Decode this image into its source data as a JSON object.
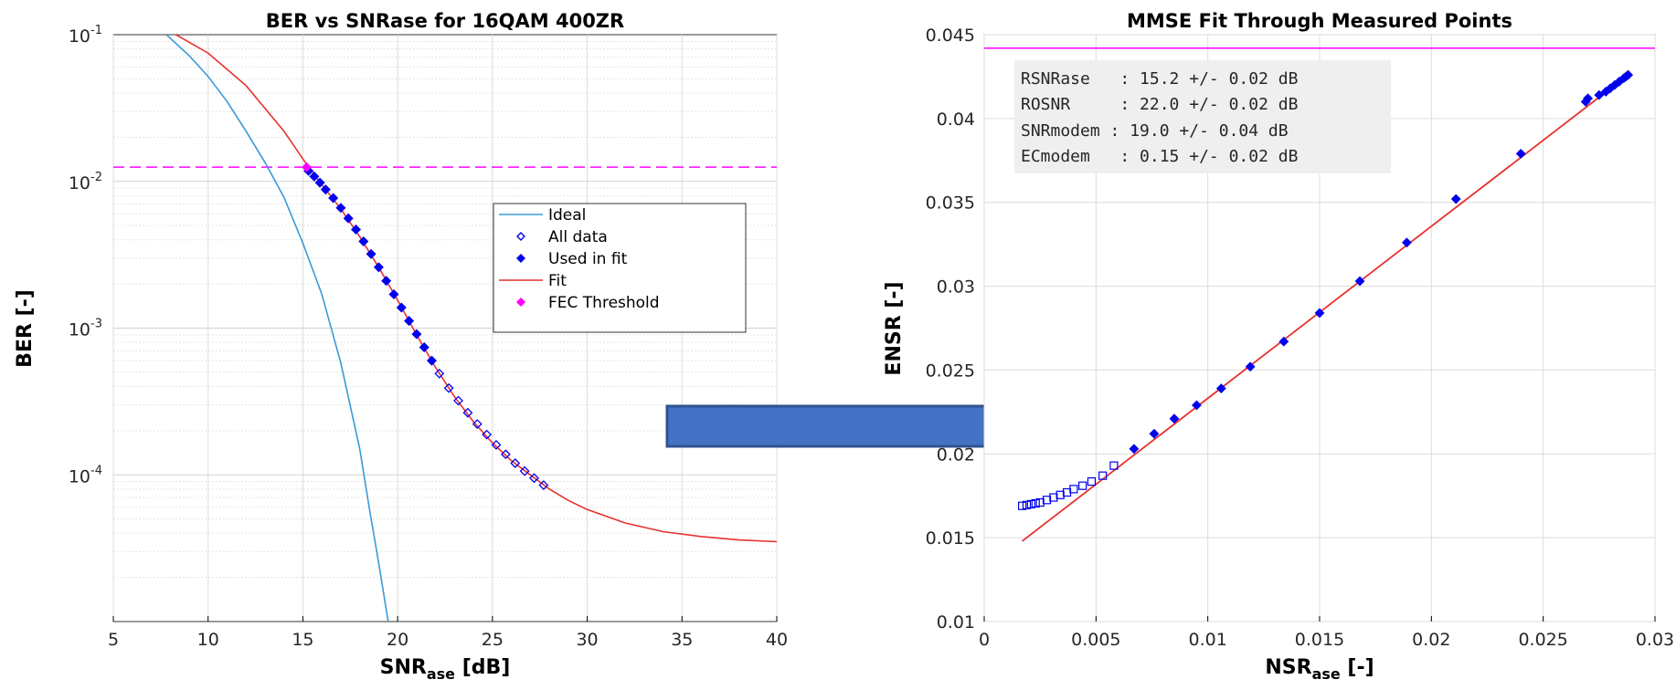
{
  "chart_data": [
    {
      "type": "line",
      "title": "BER vs SNRase for 16QAM 400ZR",
      "xlabel": "SNR",
      "xlabel_sub": "ase",
      "xlabel_unit": " [dB]",
      "ylabel": "BER [-]",
      "xlim": [
        5,
        40
      ],
      "ylim": [
        1e-05,
        0.1
      ],
      "yscale": "log",
      "xticks": [
        5,
        10,
        15,
        20,
        25,
        30,
        35,
        40
      ],
      "yticks": [
        {
          "value": 0.1,
          "base": "10",
          "exp": "-1"
        },
        {
          "value": 0.01,
          "base": "10",
          "exp": "-2"
        },
        {
          "value": 0.001,
          "base": "10",
          "exp": "-3"
        },
        {
          "value": 0.0001,
          "base": "10",
          "exp": "-4"
        }
      ],
      "grid": true,
      "legend_position": "center-right",
      "fec_threshold": 0.0125,
      "series": [
        {
          "name": "Ideal",
          "style": "line",
          "color": "#3a9ad9",
          "x": [
            7.8,
            9,
            10,
            11,
            12,
            13,
            14,
            15,
            16,
            17,
            18,
            18.5,
            19,
            19.5
          ],
          "y": [
            0.1,
            0.072,
            0.052,
            0.035,
            0.022,
            0.0135,
            0.0078,
            0.0038,
            0.0017,
            0.00058,
            0.00015,
            6e-05,
            2.5e-05,
            1e-05
          ]
        },
        {
          "name": "All data",
          "style": "open-diamond",
          "color": "#0000ee",
          "x": [
            15.3,
            15.6,
            15.9,
            16.2,
            16.6,
            17.0,
            17.4,
            17.8,
            18.2,
            18.6,
            19.0,
            19.4,
            19.8,
            20.2,
            20.6,
            21.0,
            21.4,
            21.8,
            22.2,
            22.7,
            23.2,
            23.7,
            24.2,
            24.7,
            25.2,
            25.7,
            26.2,
            26.7,
            27.2,
            27.7
          ],
          "y": [
            0.0118,
            0.0108,
            0.0098,
            0.0088,
            0.0077,
            0.0066,
            0.0056,
            0.0047,
            0.0039,
            0.0032,
            0.0026,
            0.0021,
            0.0017,
            0.00138,
            0.00112,
            0.00091,
            0.00074,
            0.0006,
            0.00049,
            0.00039,
            0.00032,
            0.000265,
            0.000222,
            0.000188,
            0.00016,
            0.000138,
            0.00012,
            0.000106,
            9.5e-05,
            8.5e-05
          ]
        },
        {
          "name": "Used in fit",
          "style": "filled-diamond",
          "color": "#0000ee",
          "x": [
            15.3,
            15.6,
            15.9,
            16.2,
            16.6,
            17.0,
            17.4,
            17.8,
            18.2,
            18.6,
            19.0,
            19.4,
            19.8,
            20.2,
            20.6,
            21.0,
            21.4,
            21.8
          ],
          "y": [
            0.0118,
            0.0108,
            0.0098,
            0.0088,
            0.0077,
            0.0066,
            0.0056,
            0.0047,
            0.0039,
            0.0032,
            0.0026,
            0.0021,
            0.0017,
            0.00138,
            0.00112,
            0.00091,
            0.00074,
            0.0006
          ]
        },
        {
          "name": "Fit",
          "style": "line",
          "color": "#e8312f",
          "x": [
            8.3,
            10,
            12,
            14,
            15.3,
            16,
            17,
            18,
            19,
            20,
            21,
            22,
            23,
            24,
            25,
            26,
            27,
            28,
            29,
            30,
            32,
            34,
            36,
            38,
            40
          ],
          "y": [
            0.1,
            0.075,
            0.045,
            0.022,
            0.0125,
            0.0095,
            0.0065,
            0.0042,
            0.0026,
            0.00155,
            0.0009,
            0.00054,
            0.00034,
            0.00023,
            0.000165,
            0.000125,
            0.0001,
            8e-05,
            6.7e-05,
            5.8e-05,
            4.7e-05,
            4.1e-05,
            3.8e-05,
            3.6e-05,
            3.5e-05
          ]
        },
        {
          "name": "FEC Threshold",
          "style": "filled-diamond",
          "color": "#ff00ff",
          "x": [
            15.2
          ],
          "y": [
            0.0125
          ]
        }
      ]
    },
    {
      "type": "scatter",
      "title": "MMSE Fit Through Measured Points",
      "xlabel": "NSR",
      "xlabel_sub": "ase",
      "xlabel_unit": " [-]",
      "ylabel": "ENSR [-]",
      "xlim": [
        0,
        0.03
      ],
      "ylim": [
        0.01,
        0.045
      ],
      "xticks": [
        0,
        0.005,
        0.01,
        0.015,
        0.02,
        0.025,
        0.03
      ],
      "yticks": [
        0.01,
        0.015,
        0.02,
        0.025,
        0.03,
        0.035,
        0.04,
        0.045
      ],
      "grid": true,
      "hline": 0.0442,
      "annotations": [
        "RSNRase   : 15.2 +/- 0.02 dB",
        "ROSNR     : 22.0 +/- 0.02 dB",
        "SNRmodem : 19.0 +/- 0.04 dB",
        "ECmodem   : 0.15 +/- 0.02 dB"
      ],
      "series": [
        {
          "style": "open-square",
          "color": "#0000ee",
          "x": [
            0.0017,
            0.0019,
            0.0021,
            0.0023,
            0.0025,
            0.0028,
            0.0031,
            0.0034,
            0.0037,
            0.004,
            0.0044,
            0.0048,
            0.0053,
            0.0058
          ],
          "y": [
            0.0169,
            0.01695,
            0.017,
            0.01705,
            0.0171,
            0.01725,
            0.0174,
            0.01755,
            0.0177,
            0.0179,
            0.0181,
            0.01835,
            0.0187,
            0.0193
          ]
        },
        {
          "style": "filled-diamond",
          "color": "#0000ee",
          "x": [
            0.0067,
            0.0076,
            0.0085,
            0.0095,
            0.0106,
            0.0119,
            0.0134,
            0.015,
            0.0168,
            0.0189,
            0.0211,
            0.024,
            0.0269,
            0.027,
            0.0275,
            0.0278,
            0.028,
            0.0282,
            0.0284,
            0.0286,
            0.0287,
            0.0288
          ],
          "y": [
            0.0203,
            0.0212,
            0.0221,
            0.0229,
            0.0239,
            0.0252,
            0.0267,
            0.0284,
            0.0303,
            0.0326,
            0.0352,
            0.0379,
            0.041,
            0.0412,
            0.0414,
            0.0416,
            0.0418,
            0.042,
            0.0422,
            0.0424,
            0.0425,
            0.0426
          ]
        },
        {
          "style": "line",
          "color": "#e8312f",
          "x": [
            0.0017,
            0.0288
          ],
          "y": [
            0.0148,
            0.0426
          ]
        }
      ]
    }
  ]
}
